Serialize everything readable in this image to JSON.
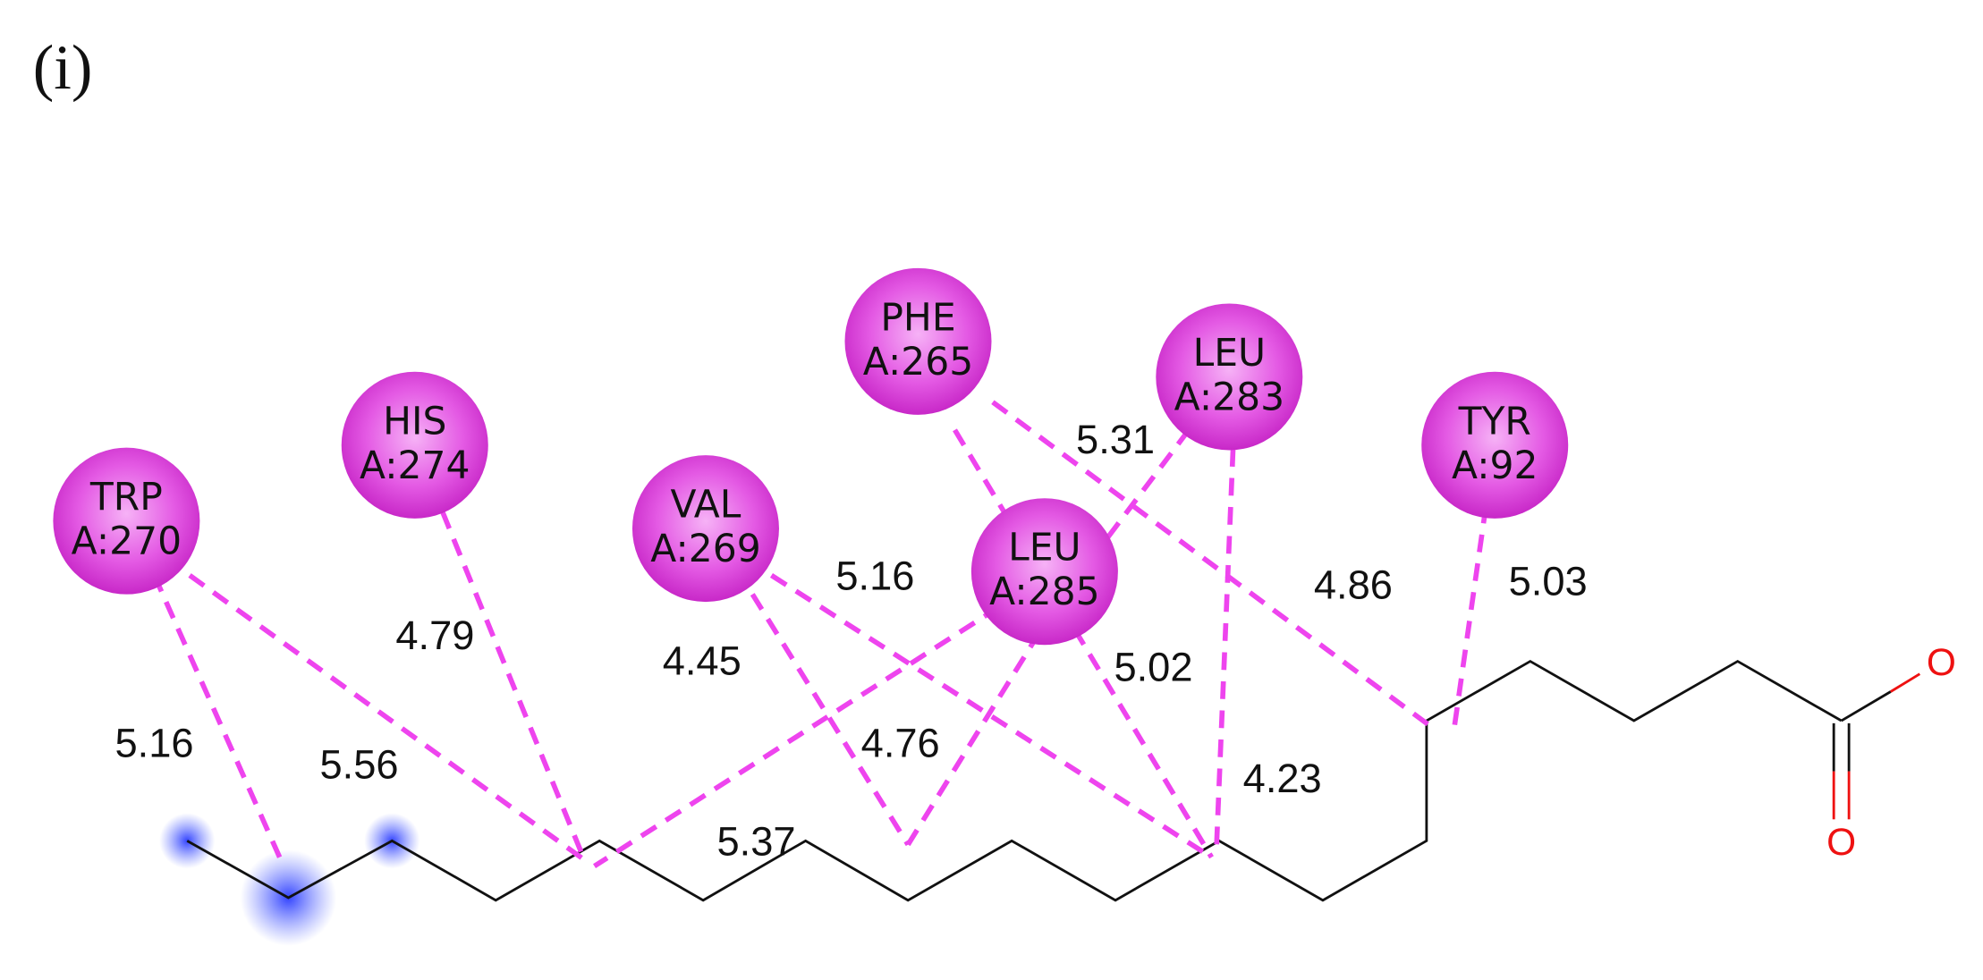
{
  "panel_label": "(i)",
  "residues": [
    {
      "name": "TRP",
      "id": "A:270"
    },
    {
      "name": "HIS",
      "id": "A:274"
    },
    {
      "name": "VAL",
      "id": "A:269"
    },
    {
      "name": "PHE",
      "id": "A:265"
    },
    {
      "name": "LEU",
      "id": "A:283"
    },
    {
      "name": "LEU",
      "id": "A:285"
    },
    {
      "name": "TYR",
      "id": "A:92"
    }
  ],
  "distances": [
    "5.16",
    "5.56",
    "4.79",
    "4.45",
    "5.16",
    "5.37",
    "4.76",
    "5.02",
    "4.86",
    "5.31",
    "4.23",
    "5.03"
  ],
  "atoms": [
    "O",
    "O"
  ]
}
